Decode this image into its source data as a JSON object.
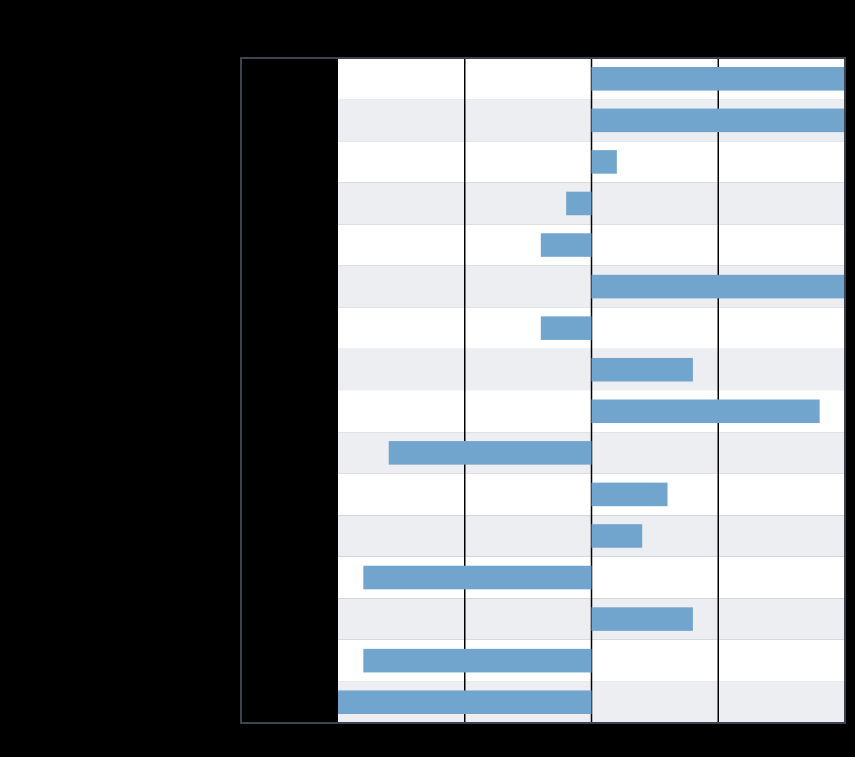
{
  "chart_data": {
    "type": "bar",
    "orientation": "horizontal",
    "title": "",
    "xlabel": "",
    "ylabel": "",
    "categories": [
      "",
      "",
      "",
      "",
      "",
      "",
      "",
      "",
      "",
      "",
      "",
      "",
      "",
      "",
      "",
      ""
    ],
    "values": [
      10,
      10,
      1,
      -1,
      -2,
      10,
      -2,
      4,
      9,
      -8,
      3,
      2,
      -9,
      4,
      -9,
      -10
    ],
    "xlim": [
      -10,
      10
    ],
    "grid": true,
    "legend": "none",
    "colors": {
      "background": "#000000",
      "row_light": "#ffffff",
      "row_alt": "#eceef1",
      "bar": "#72a5cd",
      "gridline": "#000000",
      "frame": "#3c4350"
    }
  }
}
